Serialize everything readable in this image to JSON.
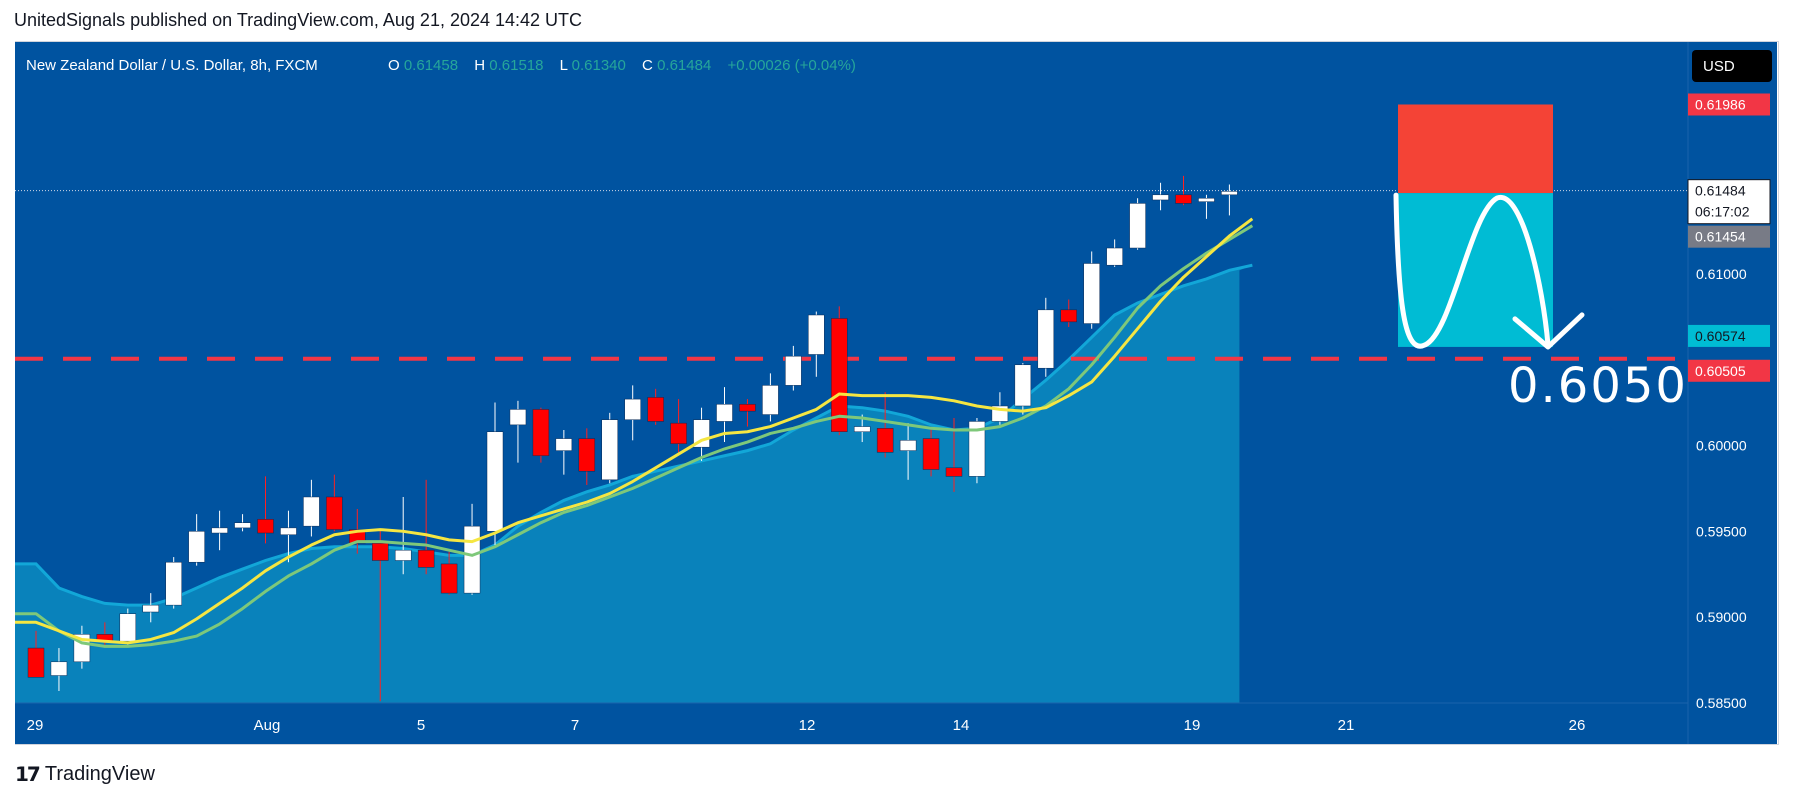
{
  "header": {
    "text": "UnitedSignals published on TradingView.com, Aug 21, 2024 14:42 UTC"
  },
  "symbol_line": {
    "name": "New Zealand Dollar / U.S. Dollar, 8h, FXCM",
    "o_label": "O",
    "o_value": "0.61458",
    "h_label": "H",
    "h_value": "0.61518",
    "l_label": "L",
    "l_value": "0.61340",
    "c_label": "C",
    "c_value": "0.61484",
    "change": "+0.00026 (+0.04%)"
  },
  "currency_button": "USD",
  "annotation_text": "0.6050",
  "footer": {
    "brand": "TradingView",
    "icon": "tradingview-logo-icon"
  },
  "colors": {
    "background": "#0053a0",
    "area_fill": "#0a8bc0",
    "bull": "#ffffff",
    "bear": "#ff0000",
    "ema_fast": "#f5e642",
    "ema_slow": "#7ec87a",
    "dashed_line": "#f23645",
    "stop_zone": "#f44336",
    "target_zone": "#00bcd4"
  },
  "chart_data": {
    "type": "candlestick",
    "ylim": [
      0.585,
      0.6235
    ],
    "y_ticks": [
      "0.61000",
      "0.60000",
      "0.59500",
      "0.59000",
      "0.58500"
    ],
    "x_ticks": [
      "29",
      "Aug",
      "5",
      "7",
      "12",
      "14",
      "19",
      "21",
      "26"
    ],
    "price_labels": {
      "stop": "0.61986",
      "current": "0.61484",
      "countdown": "06:17:02",
      "ema": "0.61454",
      "target": "0.60574",
      "level": "0.60505"
    },
    "level_price": 0.60505,
    "current_price": 0.61484,
    "trade": {
      "entry": 0.6147,
      "stop": 0.61986,
      "target": 0.60574
    },
    "candles": [
      {
        "o": 0.5882,
        "h": 0.5892,
        "l": 0.5865,
        "c": 0.5865
      },
      {
        "o": 0.5866,
        "h": 0.5882,
        "l": 0.5857,
        "c": 0.5874
      },
      {
        "o": 0.5874,
        "h": 0.5895,
        "l": 0.587,
        "c": 0.589
      },
      {
        "o": 0.589,
        "h": 0.5897,
        "l": 0.5883,
        "c": 0.5886
      },
      {
        "o": 0.5886,
        "h": 0.5905,
        "l": 0.5884,
        "c": 0.5902
      },
      {
        "o": 0.5903,
        "h": 0.5914,
        "l": 0.5897,
        "c": 0.5907
      },
      {
        "o": 0.5907,
        "h": 0.5935,
        "l": 0.5905,
        "c": 0.5932
      },
      {
        "o": 0.5932,
        "h": 0.596,
        "l": 0.593,
        "c": 0.595
      },
      {
        "o": 0.5949,
        "h": 0.5962,
        "l": 0.5939,
        "c": 0.5952
      },
      {
        "o": 0.5952,
        "h": 0.596,
        "l": 0.595,
        "c": 0.5955
      },
      {
        "o": 0.5957,
        "h": 0.5982,
        "l": 0.5943,
        "c": 0.5949
      },
      {
        "o": 0.5948,
        "h": 0.5962,
        "l": 0.5932,
        "c": 0.5952
      },
      {
        "o": 0.5953,
        "h": 0.598,
        "l": 0.5947,
        "c": 0.597
      },
      {
        "o": 0.597,
        "h": 0.5983,
        "l": 0.595,
        "c": 0.5951
      },
      {
        "o": 0.5951,
        "h": 0.5963,
        "l": 0.5937,
        "c": 0.5943
      },
      {
        "o": 0.5943,
        "h": 0.595,
        "l": 0.5851,
        "c": 0.5933
      },
      {
        "o": 0.5933,
        "h": 0.597,
        "l": 0.5925,
        "c": 0.5939
      },
      {
        "o": 0.5939,
        "h": 0.598,
        "l": 0.5925,
        "c": 0.5929
      },
      {
        "o": 0.5931,
        "h": 0.5938,
        "l": 0.5913,
        "c": 0.5914
      },
      {
        "o": 0.5914,
        "h": 0.5966,
        "l": 0.5913,
        "c": 0.5953
      },
      {
        "o": 0.595,
        "h": 0.6025,
        "l": 0.5942,
        "c": 0.6008
      },
      {
        "o": 0.6012,
        "h": 0.6026,
        "l": 0.599,
        "c": 0.6021
      },
      {
        "o": 0.6021,
        "h": 0.6022,
        "l": 0.599,
        "c": 0.5994
      },
      {
        "o": 0.5997,
        "h": 0.6009,
        "l": 0.5983,
        "c": 0.6004
      },
      {
        "o": 0.6004,
        "h": 0.601,
        "l": 0.5977,
        "c": 0.5985
      },
      {
        "o": 0.598,
        "h": 0.6019,
        "l": 0.5978,
        "c": 0.6015
      },
      {
        "o": 0.6015,
        "h": 0.6035,
        "l": 0.6003,
        "c": 0.6027
      },
      {
        "o": 0.6028,
        "h": 0.6033,
        "l": 0.6012,
        "c": 0.6014
      },
      {
        "o": 0.6013,
        "h": 0.6027,
        "l": 0.5996,
        "c": 0.6001
      },
      {
        "o": 0.5999,
        "h": 0.6022,
        "l": 0.5991,
        "c": 0.6015
      },
      {
        "o": 0.6014,
        "h": 0.6034,
        "l": 0.6002,
        "c": 0.6024
      },
      {
        "o": 0.6024,
        "h": 0.6027,
        "l": 0.6011,
        "c": 0.602
      },
      {
        "o": 0.6018,
        "h": 0.6042,
        "l": 0.6014,
        "c": 0.6035
      },
      {
        "o": 0.6035,
        "h": 0.6058,
        "l": 0.6032,
        "c": 0.6052
      },
      {
        "o": 0.6053,
        "h": 0.6078,
        "l": 0.604,
        "c": 0.6076
      },
      {
        "o": 0.6074,
        "h": 0.6081,
        "l": 0.6006,
        "c": 0.6008
      },
      {
        "o": 0.6008,
        "h": 0.6018,
        "l": 0.6002,
        "c": 0.6011
      },
      {
        "o": 0.601,
        "h": 0.6031,
        "l": 0.5993,
        "c": 0.5996
      },
      {
        "o": 0.5997,
        "h": 0.6013,
        "l": 0.598,
        "c": 0.6003
      },
      {
        "o": 0.6004,
        "h": 0.601,
        "l": 0.5982,
        "c": 0.5986
      },
      {
        "o": 0.5987,
        "h": 0.6016,
        "l": 0.5973,
        "c": 0.5982
      },
      {
        "o": 0.5982,
        "h": 0.6016,
        "l": 0.5978,
        "c": 0.6014
      },
      {
        "o": 0.6014,
        "h": 0.6031,
        "l": 0.6012,
        "c": 0.6023
      },
      {
        "o": 0.6023,
        "h": 0.6048,
        "l": 0.6018,
        "c": 0.6047
      },
      {
        "o": 0.6045,
        "h": 0.6086,
        "l": 0.604,
        "c": 0.6079
      },
      {
        "o": 0.6079,
        "h": 0.6085,
        "l": 0.6069,
        "c": 0.6072
      },
      {
        "o": 0.6071,
        "h": 0.6113,
        "l": 0.6068,
        "c": 0.6106
      },
      {
        "o": 0.6105,
        "h": 0.612,
        "l": 0.6104,
        "c": 0.6115
      },
      {
        "o": 0.6115,
        "h": 0.6144,
        "l": 0.6114,
        "c": 0.6141
      },
      {
        "o": 0.6143,
        "h": 0.6153,
        "l": 0.6137,
        "c": 0.6146
      },
      {
        "o": 0.6146,
        "h": 0.6157,
        "l": 0.614,
        "c": 0.6141
      },
      {
        "o": 0.6142,
        "h": 0.6146,
        "l": 0.6132,
        "c": 0.6144
      },
      {
        "o": 0.6146,
        "h": 0.6152,
        "l": 0.6134,
        "c": 0.6148
      }
    ],
    "ema_fast": [
      0.5897,
      0.5892,
      0.5887,
      0.5886,
      0.5885,
      0.5887,
      0.5891,
      0.5899,
      0.5908,
      0.5917,
      0.5927,
      0.5935,
      0.5942,
      0.5948,
      0.595,
      0.5951,
      0.595,
      0.5948,
      0.5945,
      0.5944,
      0.5949,
      0.5955,
      0.5959,
      0.5963,
      0.5967,
      0.5972,
      0.5979,
      0.5987,
      0.5995,
      0.6003,
      0.6007,
      0.6008,
      0.6011,
      0.6016,
      0.6021,
      0.603,
      0.6029,
      0.6029,
      0.6029,
      0.6028,
      0.6026,
      0.6023,
      0.6021,
      0.602,
      0.6022,
      0.6029,
      0.6037,
      0.6052,
      0.6068,
      0.6084,
      0.6098,
      0.611,
      0.6122,
      0.6132
    ],
    "ema_slow": [
      0.5902,
      0.5892,
      0.5885,
      0.5883,
      0.5883,
      0.5884,
      0.5886,
      0.5889,
      0.5896,
      0.5905,
      0.5915,
      0.5924,
      0.5931,
      0.5939,
      0.5944,
      0.5944,
      0.5943,
      0.5942,
      0.5939,
      0.5936,
      0.5941,
      0.5948,
      0.5955,
      0.5961,
      0.5965,
      0.597,
      0.5975,
      0.5981,
      0.5987,
      0.5993,
      0.5998,
      0.6002,
      0.6007,
      0.601,
      0.6014,
      0.6017,
      0.6016,
      0.6014,
      0.6012,
      0.601,
      0.6009,
      0.6009,
      0.6011,
      0.6016,
      0.6023,
      0.6033,
      0.6047,
      0.6063,
      0.608,
      0.6093,
      0.6103,
      0.6112,
      0.612,
      0.6128
    ],
    "area_top": [
      0.5931,
      0.5917,
      0.5912,
      0.5908,
      0.5907,
      0.5907,
      0.5911,
      0.5917,
      0.5923,
      0.5928,
      0.5933,
      0.5937,
      0.594,
      0.5941,
      0.5941,
      0.5941,
      0.594,
      0.5938,
      0.5936,
      0.5936,
      0.5942,
      0.5953,
      0.5961,
      0.5968,
      0.5973,
      0.5977,
      0.5982,
      0.5985,
      0.5988,
      0.5991,
      0.5994,
      0.5997,
      0.6001,
      0.6009,
      0.6016,
      0.6023,
      0.6022,
      0.602,
      0.6017,
      0.6012,
      0.6009,
      0.601,
      0.6016,
      0.6027,
      0.6038,
      0.605,
      0.6063,
      0.6076,
      0.6083,
      0.6088,
      0.6093,
      0.6097,
      0.6102,
      0.6105
    ]
  }
}
